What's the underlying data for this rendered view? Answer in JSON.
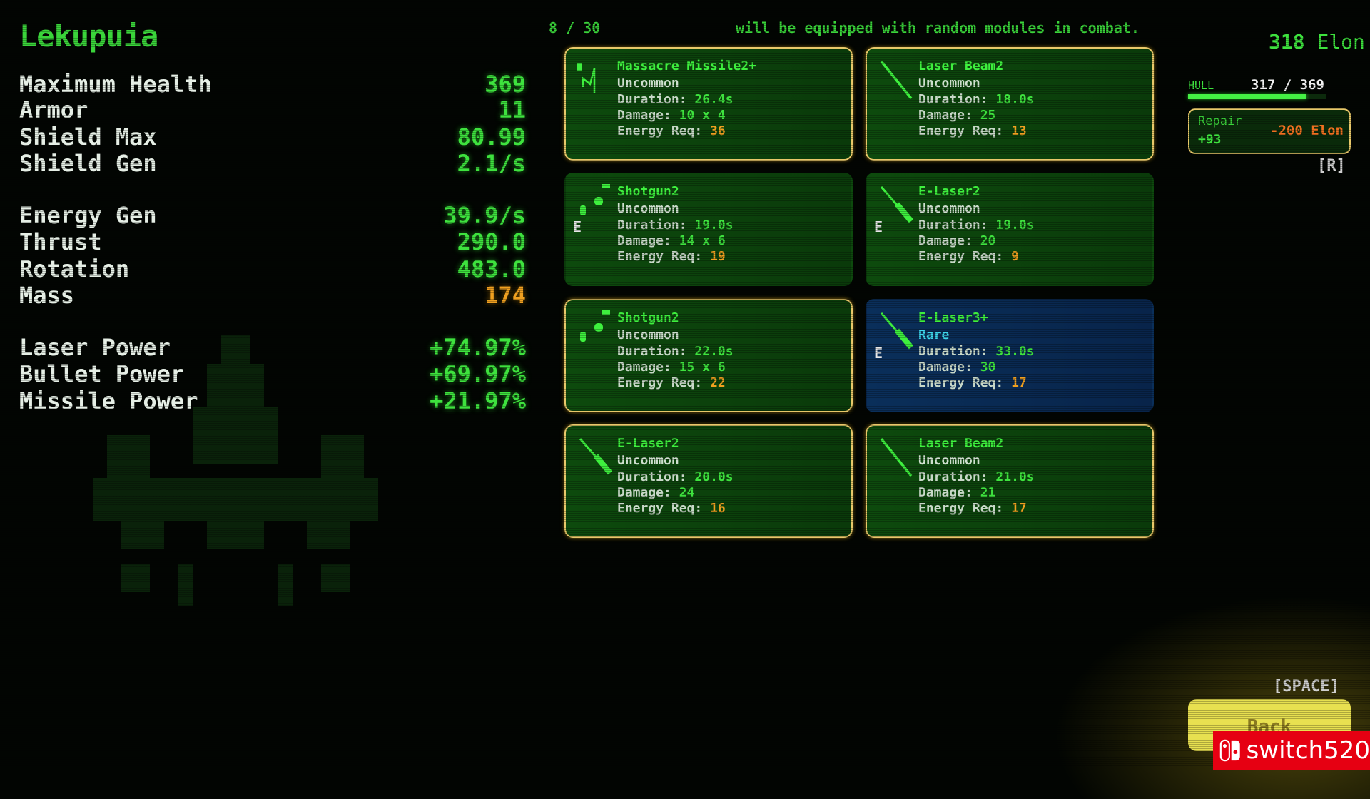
{
  "pilot_name": "Lekupuia",
  "stats": [
    {
      "label": "Maximum Health",
      "value": "369"
    },
    {
      "label": "Armor",
      "value": "11"
    },
    {
      "label": "Shield Max",
      "value": "80.99"
    },
    {
      "label": "Shield Gen",
      "value": "2.1/s"
    },
    {
      "label": "Energy Gen",
      "value": "39.9/s"
    },
    {
      "label": "Thrust",
      "value": "290.0"
    },
    {
      "label": "Rotation",
      "value": "483.0"
    },
    {
      "label": "Mass",
      "value": "174",
      "warn": true
    },
    {
      "label": "Laser Power",
      "value": "+74.97%"
    },
    {
      "label": "Bullet Power",
      "value": "+69.97%"
    },
    {
      "label": "Missile Power",
      "value": "+21.97%"
    }
  ],
  "module_count": "8 / 30",
  "message": "will be equipped with random modules in combat.",
  "labels": {
    "duration": "Duration:",
    "damage": "Damage:",
    "energy": "Energy Req:",
    "equipped_marker": "E"
  },
  "modules": [
    {
      "name": "Massacre Missile2+",
      "rarity": "Uncommon",
      "duration": "26.4s",
      "damage": "10 x 4",
      "energy": "36",
      "icon": "missile-icon",
      "selected": true,
      "equipped": false
    },
    {
      "name": "Laser Beam2",
      "rarity": "Uncommon",
      "duration": "18.0s",
      "damage": "25",
      "energy": "13",
      "icon": "laser-beam-icon",
      "selected": true,
      "equipped": false
    },
    {
      "name": "Shotgun2",
      "rarity": "Uncommon",
      "duration": "19.0s",
      "damage": "14 x 6",
      "energy": "19",
      "icon": "shotgun-icon",
      "selected": false,
      "equipped": true
    },
    {
      "name": "E-Laser2",
      "rarity": "Uncommon",
      "duration": "19.0s",
      "damage": "20",
      "energy": "9",
      "icon": "e-laser-icon",
      "selected": false,
      "equipped": true
    },
    {
      "name": "Shotgun2",
      "rarity": "Uncommon",
      "duration": "22.0s",
      "damage": "15 x 6",
      "energy": "22",
      "icon": "shotgun-icon",
      "selected": true,
      "equipped": false
    },
    {
      "name": "E-Laser3+",
      "rarity": "Rare",
      "duration": "33.0s",
      "damage": "30",
      "energy": "17",
      "icon": "e-laser-icon",
      "selected": false,
      "equipped": true
    },
    {
      "name": "E-Laser2",
      "rarity": "Uncommon",
      "duration": "20.0s",
      "damage": "24",
      "energy": "16",
      "icon": "e-laser-icon",
      "selected": true,
      "equipped": false
    },
    {
      "name": "Laser Beam2",
      "rarity": "Uncommon",
      "duration": "21.0s",
      "damage": "21",
      "energy": "17",
      "icon": "laser-beam-icon",
      "selected": true,
      "equipped": false
    }
  ],
  "currency": {
    "amount": "318",
    "unit": "Elon"
  },
  "hull": {
    "label": "HULL",
    "value": "317 / 369",
    "current": 317,
    "max": 369
  },
  "repair": {
    "label": "Repair",
    "amount": "+93",
    "cost": "-200 Elon",
    "key": "[R]"
  },
  "back": {
    "label": "Back",
    "key": "[SPACE]"
  },
  "watermark": "switch520",
  "colors": {
    "accent": "#3ee23e",
    "energy": "#f0a020",
    "rare": "#3fd8f0",
    "back_button": "#e8e050"
  }
}
